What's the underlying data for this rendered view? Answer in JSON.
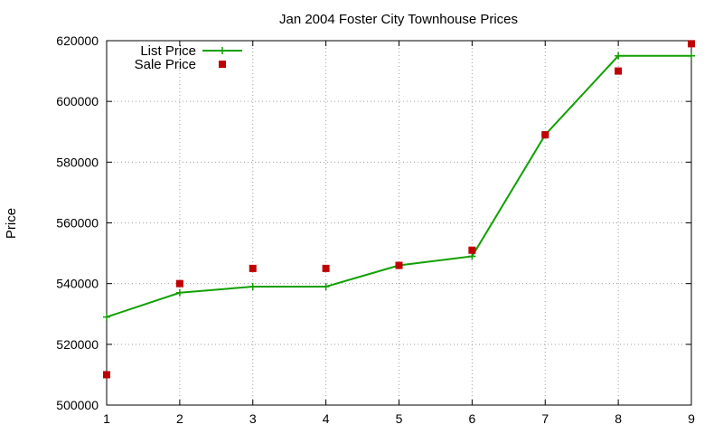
{
  "chart_data": {
    "type": "line",
    "title": "Jan 2004 Foster City Townhouse Prices",
    "xlabel": "",
    "ylabel": "Price",
    "xlim": [
      1,
      9
    ],
    "ylim": [
      500000,
      620000
    ],
    "x_ticks": [
      1,
      2,
      3,
      4,
      5,
      6,
      7,
      8,
      9
    ],
    "y_ticks": [
      500000,
      520000,
      540000,
      560000,
      580000,
      600000,
      620000
    ],
    "grid": true,
    "legend_position": "top-left",
    "series": [
      {
        "name": "List Price",
        "style": "line-with-plus-markers",
        "color": "#10a000",
        "x": [
          1,
          2,
          3,
          4,
          5,
          6,
          7,
          8,
          9
        ],
        "y": [
          529000,
          537000,
          539000,
          539000,
          546000,
          549000,
          589000,
          615000,
          615000
        ]
      },
      {
        "name": "Sale Price",
        "style": "square-markers",
        "color": "#c00000",
        "x": [
          1,
          2,
          3,
          4,
          5,
          6,
          7,
          8,
          9
        ],
        "y": [
          510000,
          540000,
          545000,
          545000,
          546000,
          551000,
          589000,
          610000,
          619000
        ]
      }
    ]
  }
}
